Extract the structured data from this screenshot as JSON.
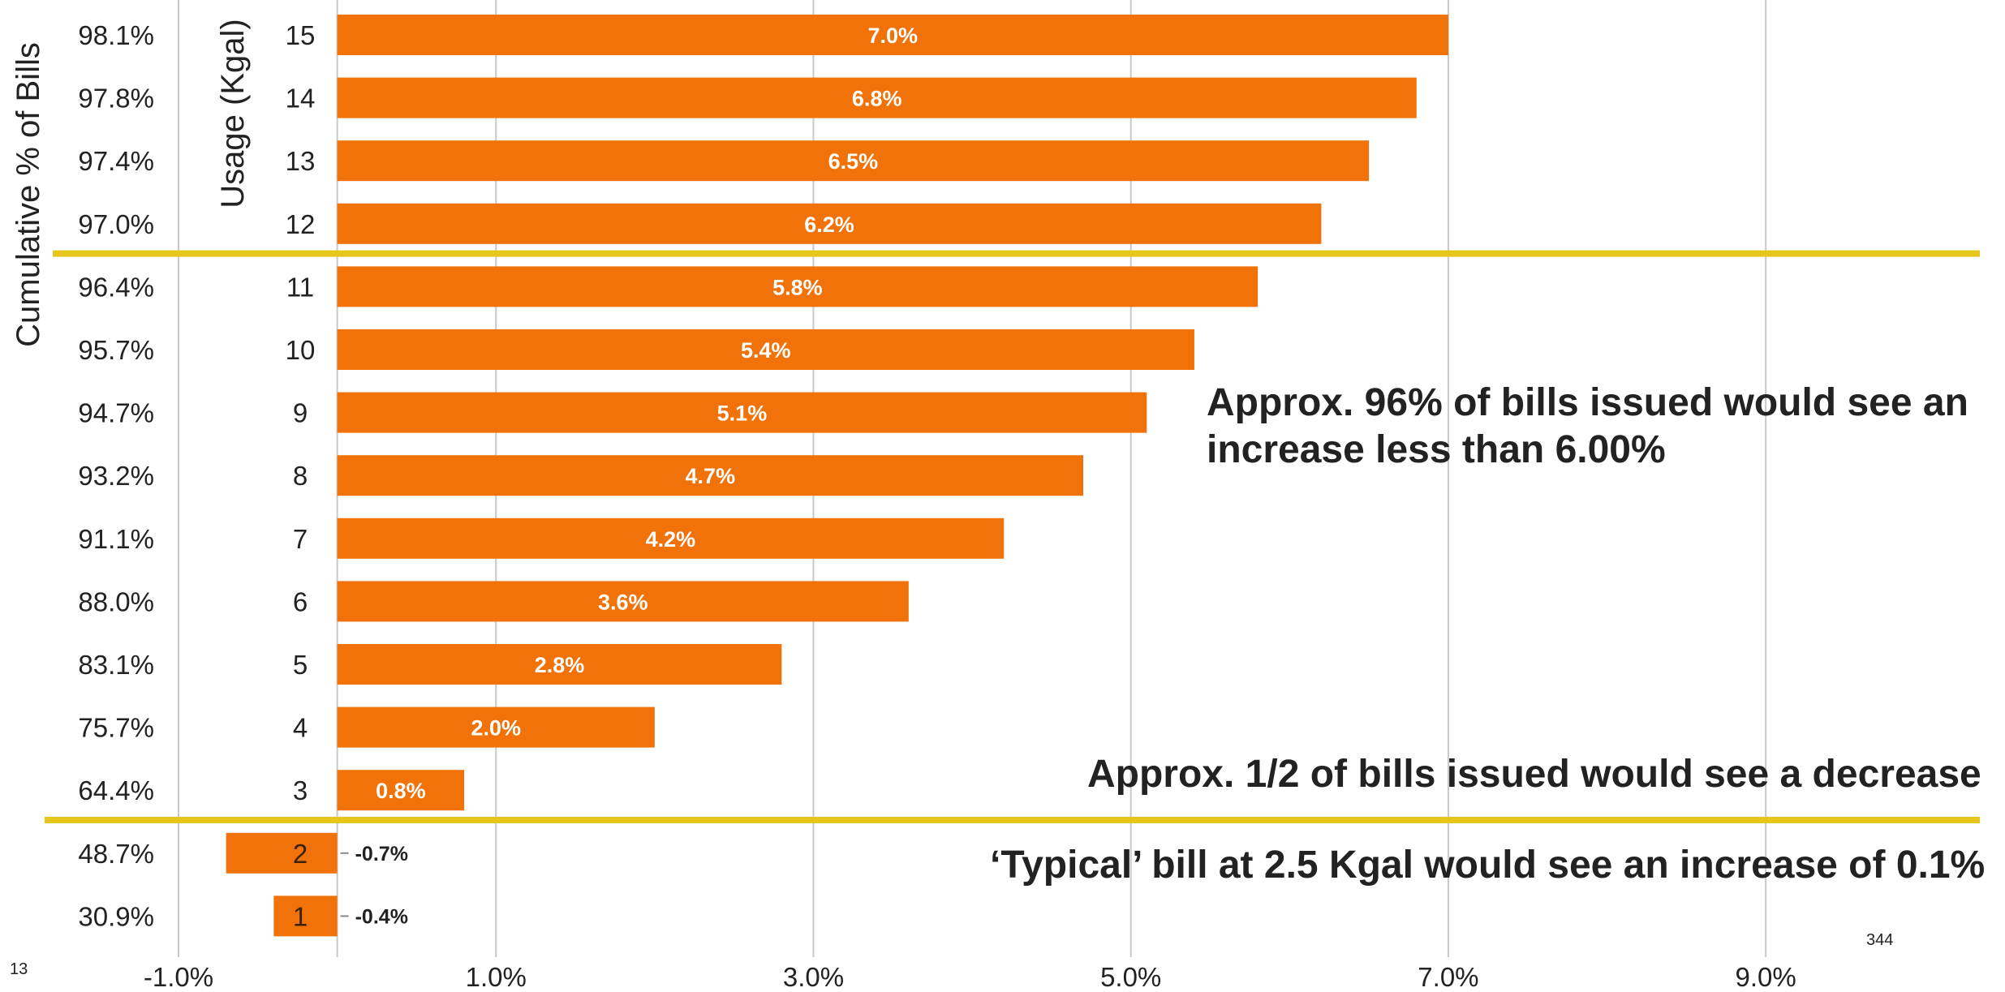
{
  "chart_data": {
    "type": "bar",
    "orientation": "horizontal",
    "ylabel": "Usage (Kgal)",
    "secondary_ylabel": "Cumulative % of Bills",
    "xlim": [
      -1.0,
      10.4
    ],
    "x_ticks": [
      -1.0,
      1.0,
      3.0,
      5.0,
      7.0,
      9.0
    ],
    "x_tick_labels": [
      "-1.0%",
      "1.0%",
      "3.0%",
      "5.0%",
      "7.0%",
      "9.0%"
    ],
    "grid": "vertical",
    "bar_color": "#f07208",
    "threshold_line_color": "#e6c61a",
    "categories": [
      "15",
      "14",
      "13",
      "12",
      "11",
      "10",
      "9",
      "8",
      "7",
      "6",
      "5",
      "4",
      "3",
      "2",
      "1"
    ],
    "cumulative_pct_labels": [
      "98.1%",
      "97.8%",
      "97.4%",
      "97.0%",
      "96.4%",
      "95.7%",
      "94.7%",
      "93.2%",
      "91.1%",
      "88.0%",
      "83.1%",
      "75.7%",
      "64.4%",
      "48.7%",
      "30.9%"
    ],
    "values": [
      7.0,
      6.8,
      6.5,
      6.2,
      5.8,
      5.4,
      5.1,
      4.7,
      4.2,
      3.6,
      2.8,
      2.0,
      0.8,
      -0.7,
      -0.4
    ],
    "value_labels": [
      "7.0%",
      "6.8%",
      "6.5%",
      "6.2%",
      "5.8%",
      "5.4%",
      "5.1%",
      "4.7%",
      "4.2%",
      "3.6%",
      "2.8%",
      "2.0%",
      "0.8%",
      "-0.7%",
      "-0.4%"
    ],
    "threshold_lines_after_rows": [
      4,
      13
    ]
  },
  "annotations": {
    "approx_96_line1": "Approx. 96% of bills issued would see an",
    "approx_96_line2": "increase less than 6.00%",
    "approx_half": "Approx. 1/2 of bills issued would see a decrease",
    "typical_bill": "‘Typical’ bill at 2.5 Kgal would see an increase of 0.1%"
  },
  "page_number_left": "13",
  "page_number_right": "344"
}
